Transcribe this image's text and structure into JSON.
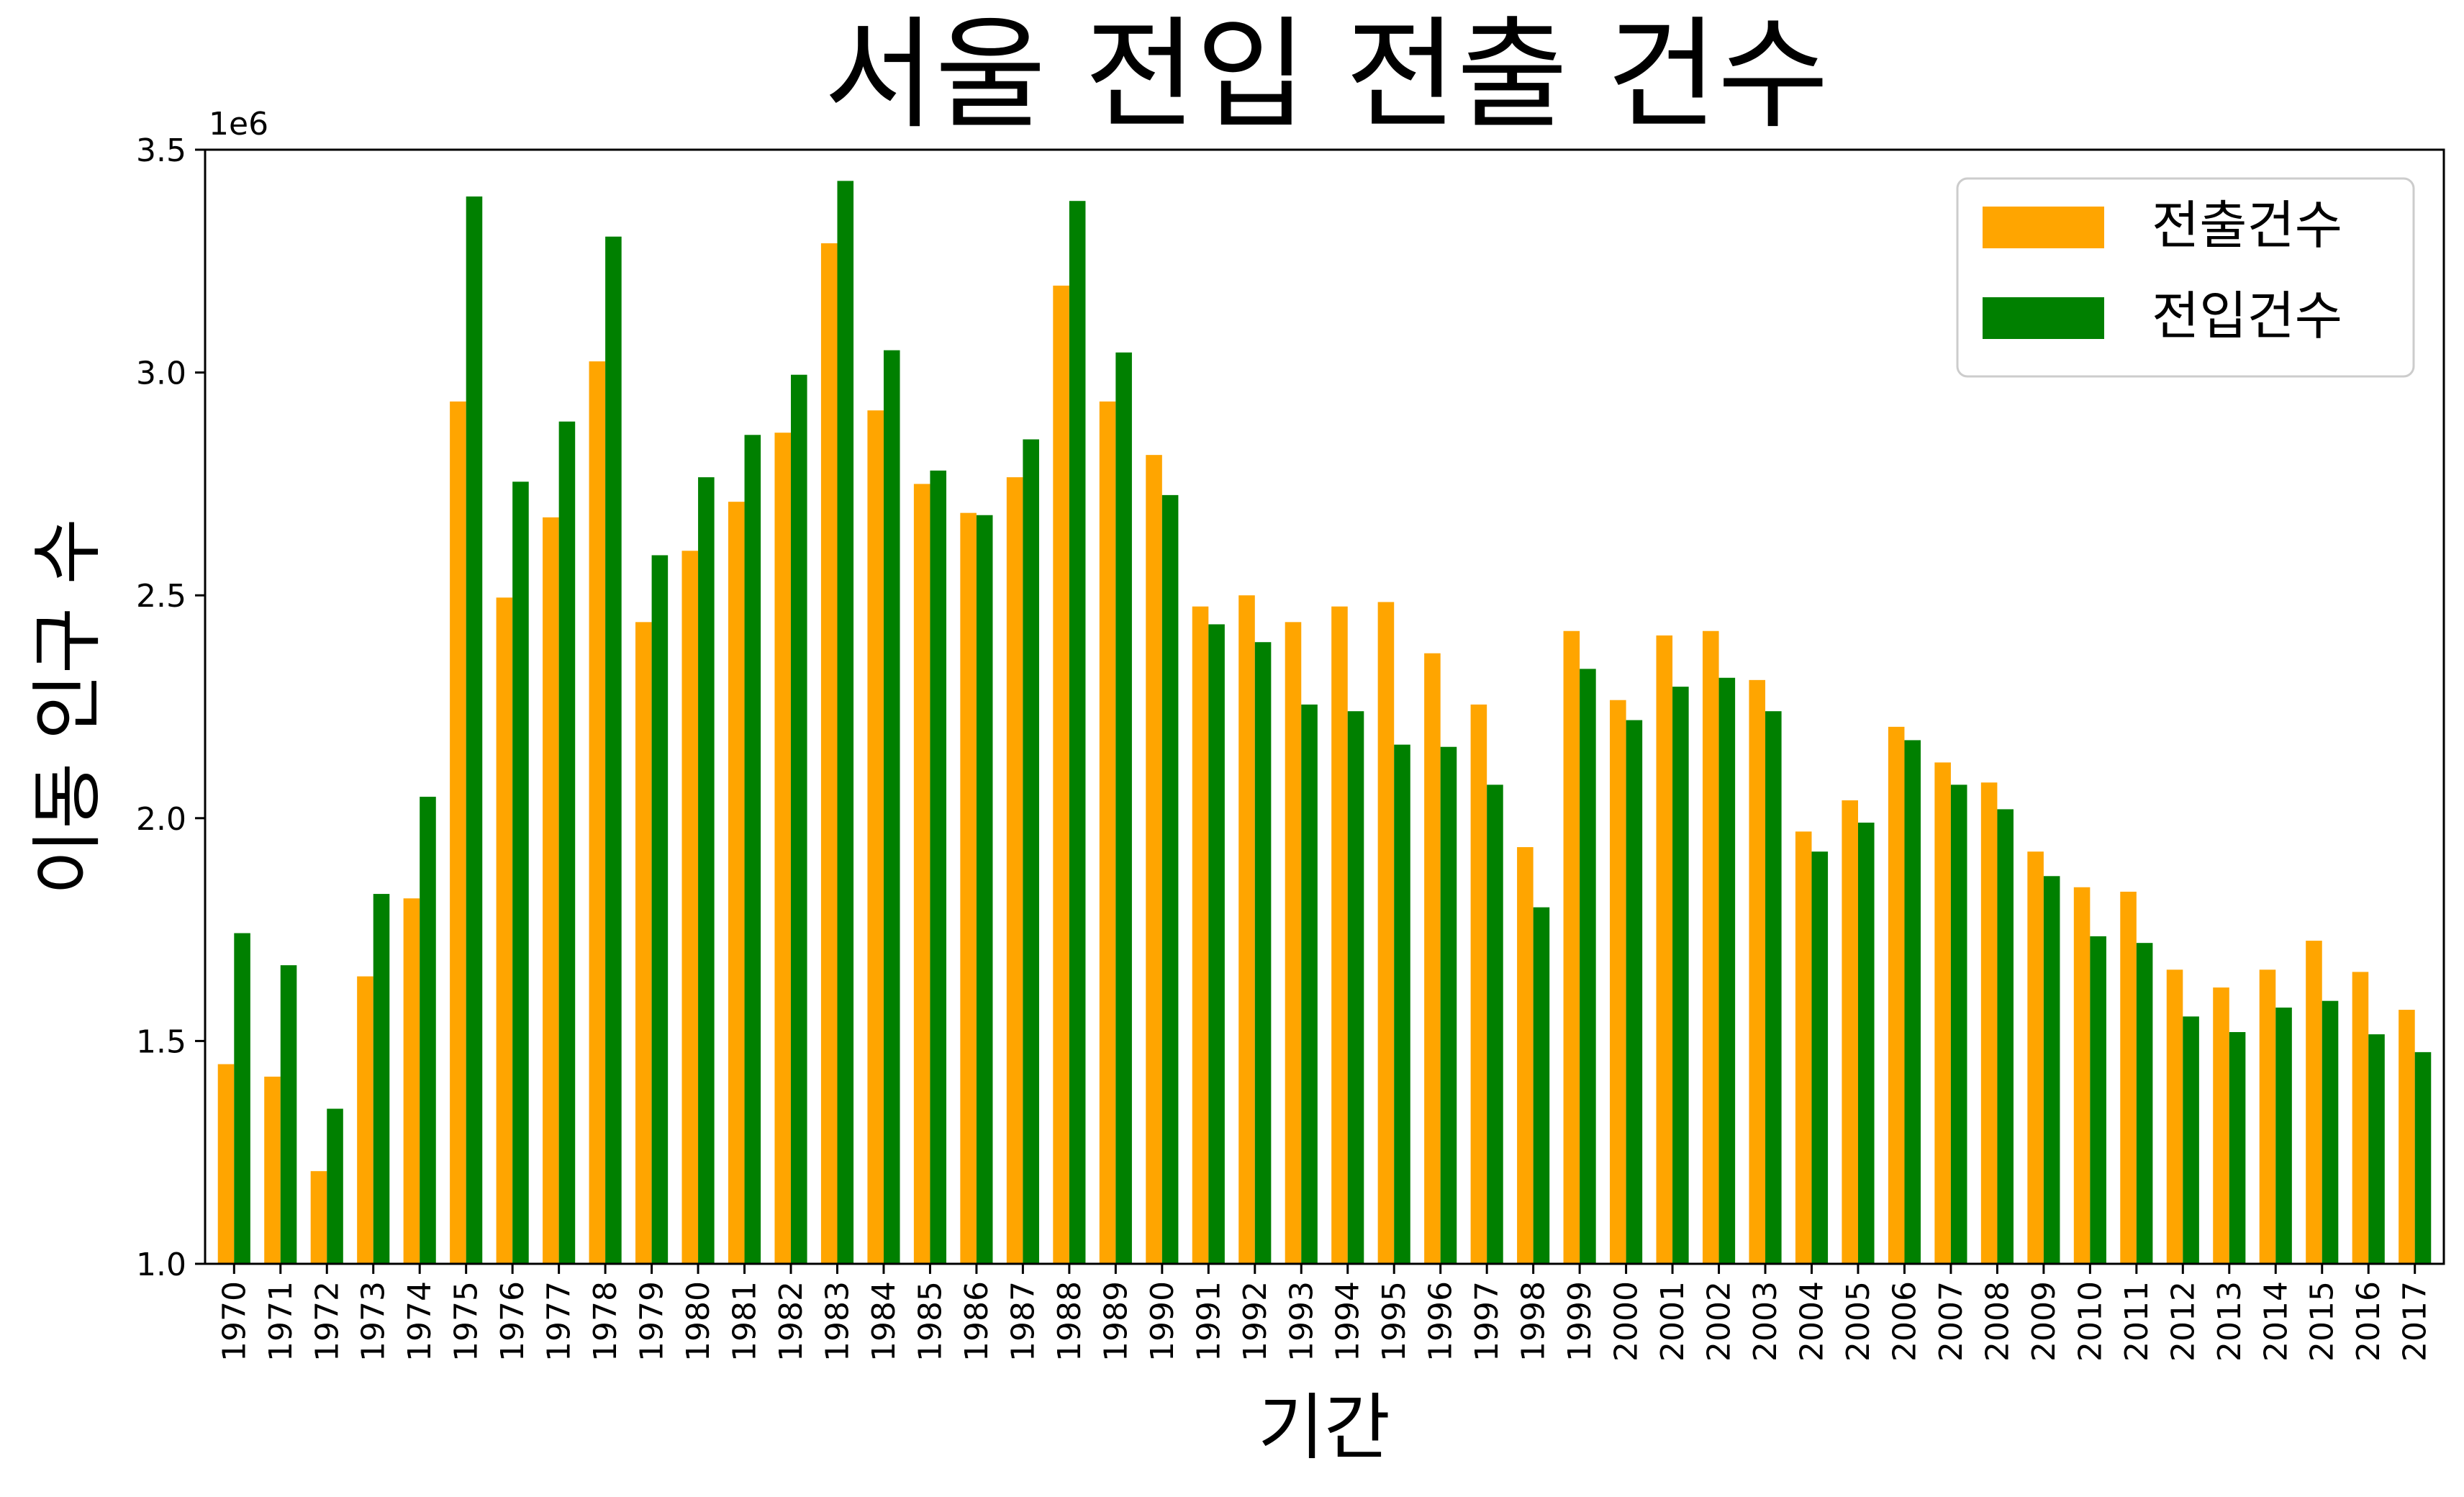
{
  "chart_data": {
    "type": "bar",
    "title": "서울 전입 전출 건수",
    "xlabel": "기간",
    "ylabel": "이동 인구 수",
    "offset_label": "1e6",
    "ylim": [
      1000000,
      3500000
    ],
    "yticks": [
      1000000,
      1500000,
      2000000,
      2500000,
      3000000,
      3500000
    ],
    "ytick_labels": [
      "1.0",
      "1.5",
      "2.0",
      "2.5",
      "3.0",
      "3.5"
    ],
    "grid": false,
    "legend_position": "top-right",
    "categories": [
      "1970",
      "1971",
      "1972",
      "1973",
      "1974",
      "1975",
      "1976",
      "1977",
      "1978",
      "1979",
      "1980",
      "1981",
      "1982",
      "1983",
      "1984",
      "1985",
      "1986",
      "1987",
      "1988",
      "1989",
      "1990",
      "1991",
      "1992",
      "1993",
      "1994",
      "1995",
      "1996",
      "1997",
      "1998",
      "1999",
      "2000",
      "2001",
      "2002",
      "2003",
      "2004",
      "2005",
      "2006",
      "2007",
      "2008",
      "2009",
      "2010",
      "2011",
      "2012",
      "2013",
      "2014",
      "2015",
      "2016",
      "2017"
    ],
    "series": [
      {
        "name": "전출건수",
        "color": "#FFA500",
        "values": [
          1448000,
          1420000,
          1208000,
          1645000,
          1820000,
          2935000,
          2495000,
          2675000,
          3025000,
          2440000,
          2600000,
          2710000,
          2865000,
          3290000,
          2915000,
          2750000,
          2685000,
          2765000,
          3195000,
          2935000,
          2815000,
          2475000,
          2500000,
          2440000,
          2475000,
          2485000,
          2370000,
          2255000,
          1935000,
          2420000,
          2265000,
          2410000,
          2420000,
          2310000,
          1970000,
          2040000,
          2205000,
          2125000,
          2080000,
          1925000,
          1845000,
          1835000,
          1660000,
          1620000,
          1660000,
          1725000,
          1655000,
          1570000
        ]
      },
      {
        "name": "전입건수",
        "color": "#008000",
        "values": [
          1742000,
          1670000,
          1348000,
          1830000,
          2048000,
          3395000,
          2755000,
          2890000,
          3305000,
          2590000,
          2765000,
          2860000,
          2995000,
          3430000,
          3050000,
          2780000,
          2680000,
          2850000,
          3385000,
          3045000,
          2725000,
          2435000,
          2395000,
          2255000,
          2240000,
          2165000,
          2160000,
          2075000,
          1800000,
          2335000,
          2220000,
          2295000,
          2315000,
          2240000,
          1925000,
          1990000,
          2175000,
          2075000,
          2020000,
          1870000,
          1735000,
          1720000,
          1555000,
          1520000,
          1575000,
          1590000,
          1515000,
          1475000
        ]
      }
    ]
  }
}
